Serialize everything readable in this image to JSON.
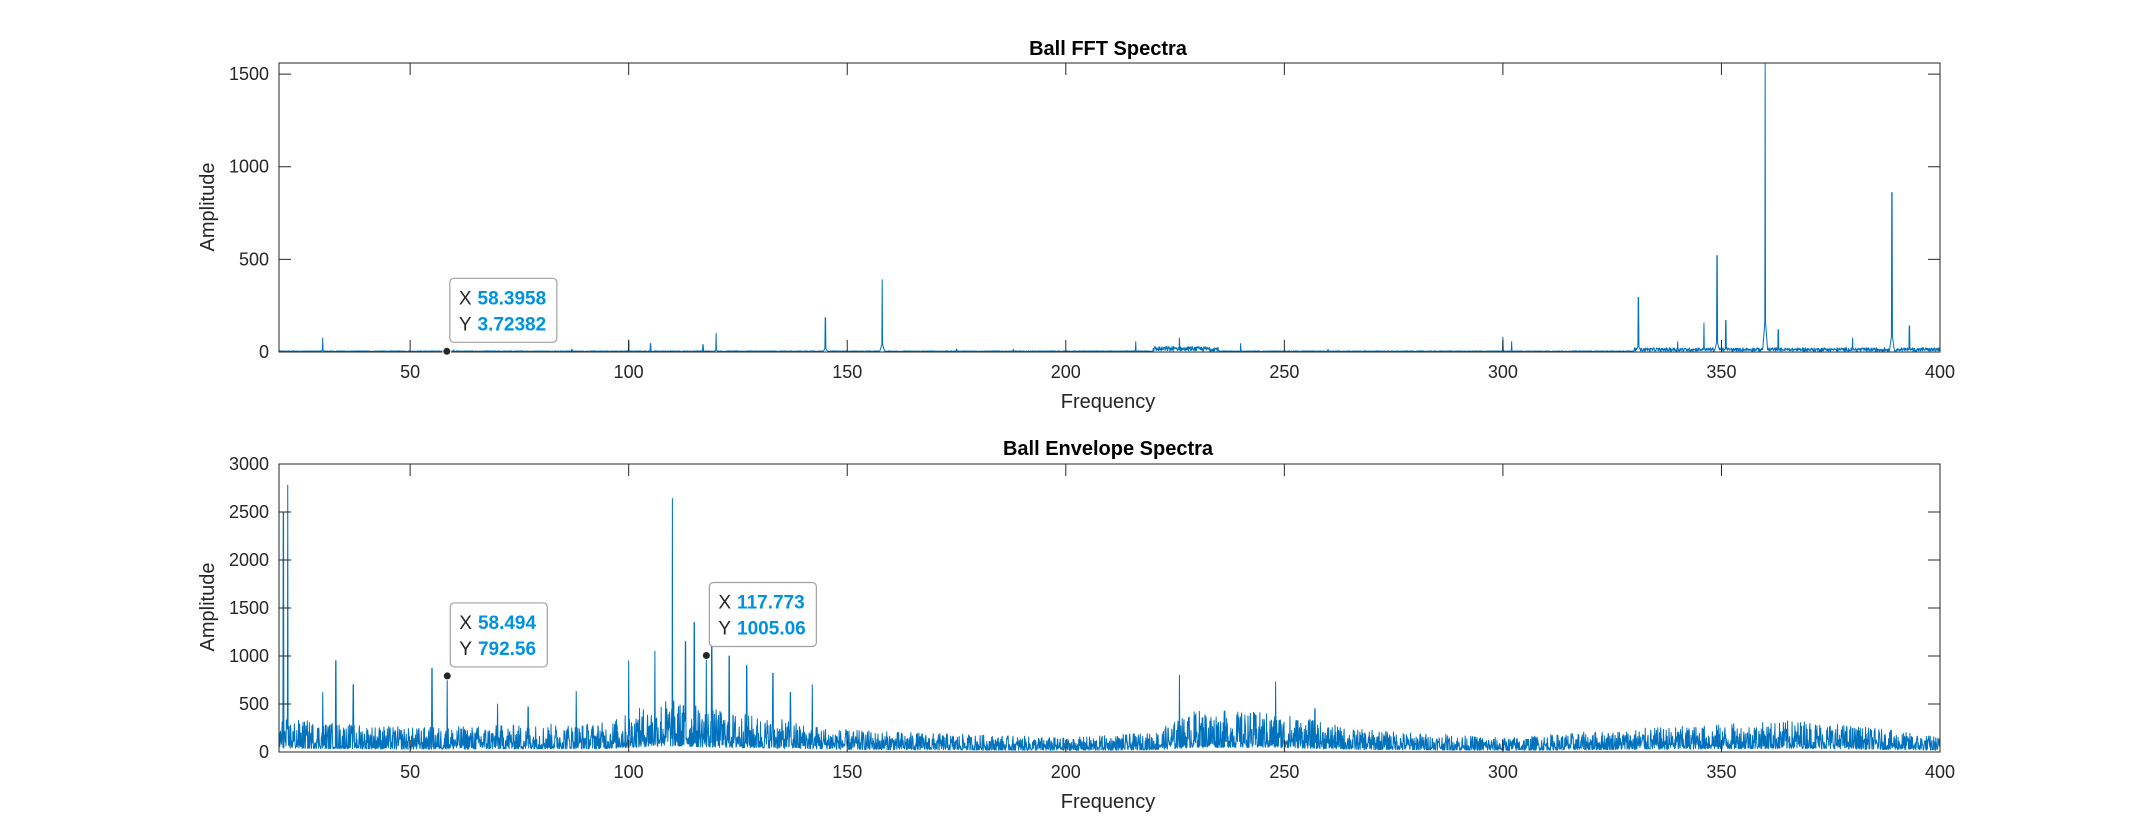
{
  "colors": {
    "line": "#0072BD",
    "axis": "#262626",
    "tip_value": "#0092e0"
  },
  "chart_data": [
    {
      "type": "line",
      "title": "Ball FFT Spectra",
      "xlabel": "Frequency",
      "ylabel": "Amplitude",
      "xlim": [
        20,
        400
      ],
      "ylim": [
        0,
        1560
      ],
      "xticks": [
        50,
        100,
        150,
        200,
        250,
        300,
        350,
        400
      ],
      "yticks": [
        0,
        500,
        1000,
        1500
      ],
      "grid": false,
      "series": [
        {
          "baseline": 5,
          "noise_regions": [
            {
              "x": [
                220,
                235
              ],
              "level": 25
            },
            {
              "x": [
                330,
                400
              ],
              "level": 18
            }
          ],
          "peaks": [
            {
              "x": 30,
              "y": 75
            },
            {
              "x": 60,
              "y": 12
            },
            {
              "x": 87,
              "y": 15
            },
            {
              "x": 100,
              "y": 65
            },
            {
              "x": 105,
              "y": 45
            },
            {
              "x": 117,
              "y": 40
            },
            {
              "x": 120,
              "y": 100
            },
            {
              "x": 145,
              "y": 185
            },
            {
              "x": 158,
              "y": 390
            },
            {
              "x": 175,
              "y": 15
            },
            {
              "x": 188,
              "y": 15
            },
            {
              "x": 216,
              "y": 55
            },
            {
              "x": 226,
              "y": 75
            },
            {
              "x": 240,
              "y": 45
            },
            {
              "x": 260,
              "y": 15
            },
            {
              "x": 300,
              "y": 80
            },
            {
              "x": 302,
              "y": 55
            },
            {
              "x": 331,
              "y": 295
            },
            {
              "x": 340,
              "y": 55
            },
            {
              "x": 346,
              "y": 155
            },
            {
              "x": 349,
              "y": 520
            },
            {
              "x": 351,
              "y": 170
            },
            {
              "x": 360,
              "y": 1560
            },
            {
              "x": 363,
              "y": 120
            },
            {
              "x": 380,
              "y": 75
            },
            {
              "x": 389,
              "y": 860
            },
            {
              "x": 393,
              "y": 140
            }
          ]
        }
      ],
      "datatips": [
        {
          "x": 58.3958,
          "y": 3.72382,
          "x_text": "58.3958",
          "y_text": "3.72382",
          "key_x": "X",
          "key_y": "Y"
        }
      ]
    },
    {
      "type": "line",
      "title": "Ball Envelope Spectra",
      "xlabel": "Frequency",
      "ylabel": "Amplitude",
      "xlim": [
        20,
        400
      ],
      "ylim": [
        0,
        3000
      ],
      "xticks": [
        50,
        100,
        150,
        200,
        250,
        300,
        350,
        400
      ],
      "yticks": [
        0,
        500,
        1000,
        1500,
        2000,
        2500,
        3000
      ],
      "grid": false,
      "series": [
        {
          "noise_envelope": [
            {
              "x": 20,
              "level": 260
            },
            {
              "x": 50,
              "level": 190
            },
            {
              "x": 95,
              "level": 230
            },
            {
              "x": 108,
              "level": 420
            },
            {
              "x": 120,
              "level": 330
            },
            {
              "x": 150,
              "level": 170
            },
            {
              "x": 200,
              "level": 110
            },
            {
              "x": 220,
              "level": 150
            },
            {
              "x": 230,
              "level": 330
            },
            {
              "x": 250,
              "level": 300
            },
            {
              "x": 265,
              "level": 180
            },
            {
              "x": 300,
              "level": 110
            },
            {
              "x": 330,
              "level": 180
            },
            {
              "x": 370,
              "level": 250
            },
            {
              "x": 400,
              "level": 120
            }
          ],
          "peaks": [
            {
              "x": 22,
              "y": 2780
            },
            {
              "x": 21,
              "y": 2500
            },
            {
              "x": 33,
              "y": 950
            },
            {
              "x": 30,
              "y": 620
            },
            {
              "x": 37,
              "y": 700
            },
            {
              "x": 55,
              "y": 870
            },
            {
              "x": 58.494,
              "y": 792.56
            },
            {
              "x": 70,
              "y": 500
            },
            {
              "x": 77,
              "y": 470
            },
            {
              "x": 88,
              "y": 630
            },
            {
              "x": 100,
              "y": 950
            },
            {
              "x": 106,
              "y": 1050
            },
            {
              "x": 110,
              "y": 2640
            },
            {
              "x": 113,
              "y": 1150
            },
            {
              "x": 115,
              "y": 1350
            },
            {
              "x": 117.773,
              "y": 1005.06
            },
            {
              "x": 119,
              "y": 1200
            },
            {
              "x": 123,
              "y": 1000
            },
            {
              "x": 127,
              "y": 900
            },
            {
              "x": 133,
              "y": 820
            },
            {
              "x": 137,
              "y": 620
            },
            {
              "x": 142,
              "y": 700
            },
            {
              "x": 226,
              "y": 800
            },
            {
              "x": 248,
              "y": 730
            },
            {
              "x": 257,
              "y": 450
            }
          ]
        }
      ],
      "datatips": [
        {
          "x": 58.494,
          "y": 792.56,
          "x_text": "58.494",
          "y_text": "792.56",
          "key_x": "X",
          "key_y": "Y"
        },
        {
          "x": 117.773,
          "y": 1005.06,
          "x_text": "117.773",
          "y_text": "1005.06",
          "key_x": "X",
          "key_y": "Y"
        }
      ]
    }
  ]
}
